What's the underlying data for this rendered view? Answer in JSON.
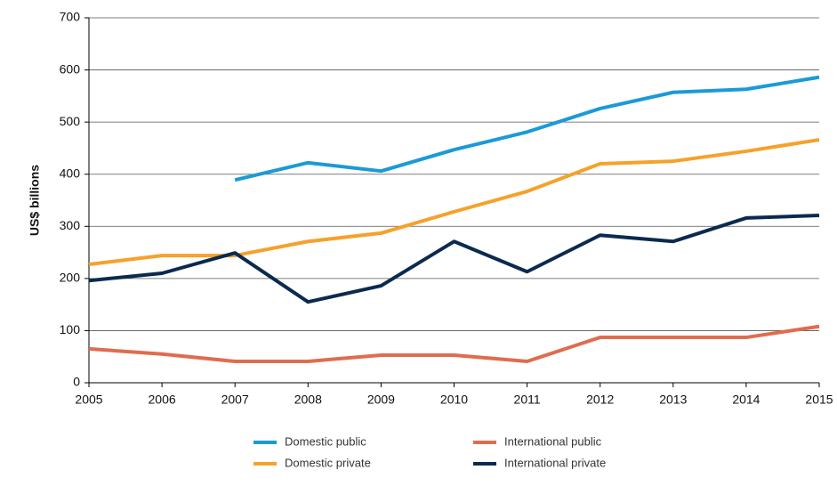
{
  "chart_data": {
    "type": "line",
    "y_label": "US$ billions",
    "x": [
      2005,
      2006,
      2007,
      2008,
      2009,
      2010,
      2011,
      2012,
      2013,
      2014,
      2015
    ],
    "xlim": [
      2005,
      2015
    ],
    "xticks": [
      2005,
      2006,
      2007,
      2008,
      2009,
      2010,
      2011,
      2012,
      2013,
      2014,
      2015
    ],
    "ylim": [
      0,
      700
    ],
    "yticks": [
      0,
      100,
      200,
      300,
      400,
      500,
      600,
      700
    ],
    "grid": true,
    "legend": "bottom",
    "series": [
      {
        "name": "Domestic public",
        "color": "#1b9ad6",
        "values": [
          null,
          null,
          389,
          422,
          406,
          447,
          481,
          526,
          557,
          563,
          586
        ]
      },
      {
        "name": "International public",
        "color": "#e06c4f",
        "values": [
          65,
          55,
          41,
          41,
          53,
          53,
          41,
          87,
          87,
          87,
          108
        ]
      },
      {
        "name": "Domestic private",
        "color": "#f6a12b",
        "values": [
          227,
          244,
          244,
          271,
          287,
          328,
          367,
          420,
          425,
          444,
          466
        ]
      },
      {
        "name": "International private",
        "color": "#0b2a4f",
        "values": [
          196,
          210,
          249,
          155,
          186,
          271,
          213,
          283,
          271,
          316,
          321
        ]
      }
    ]
  }
}
